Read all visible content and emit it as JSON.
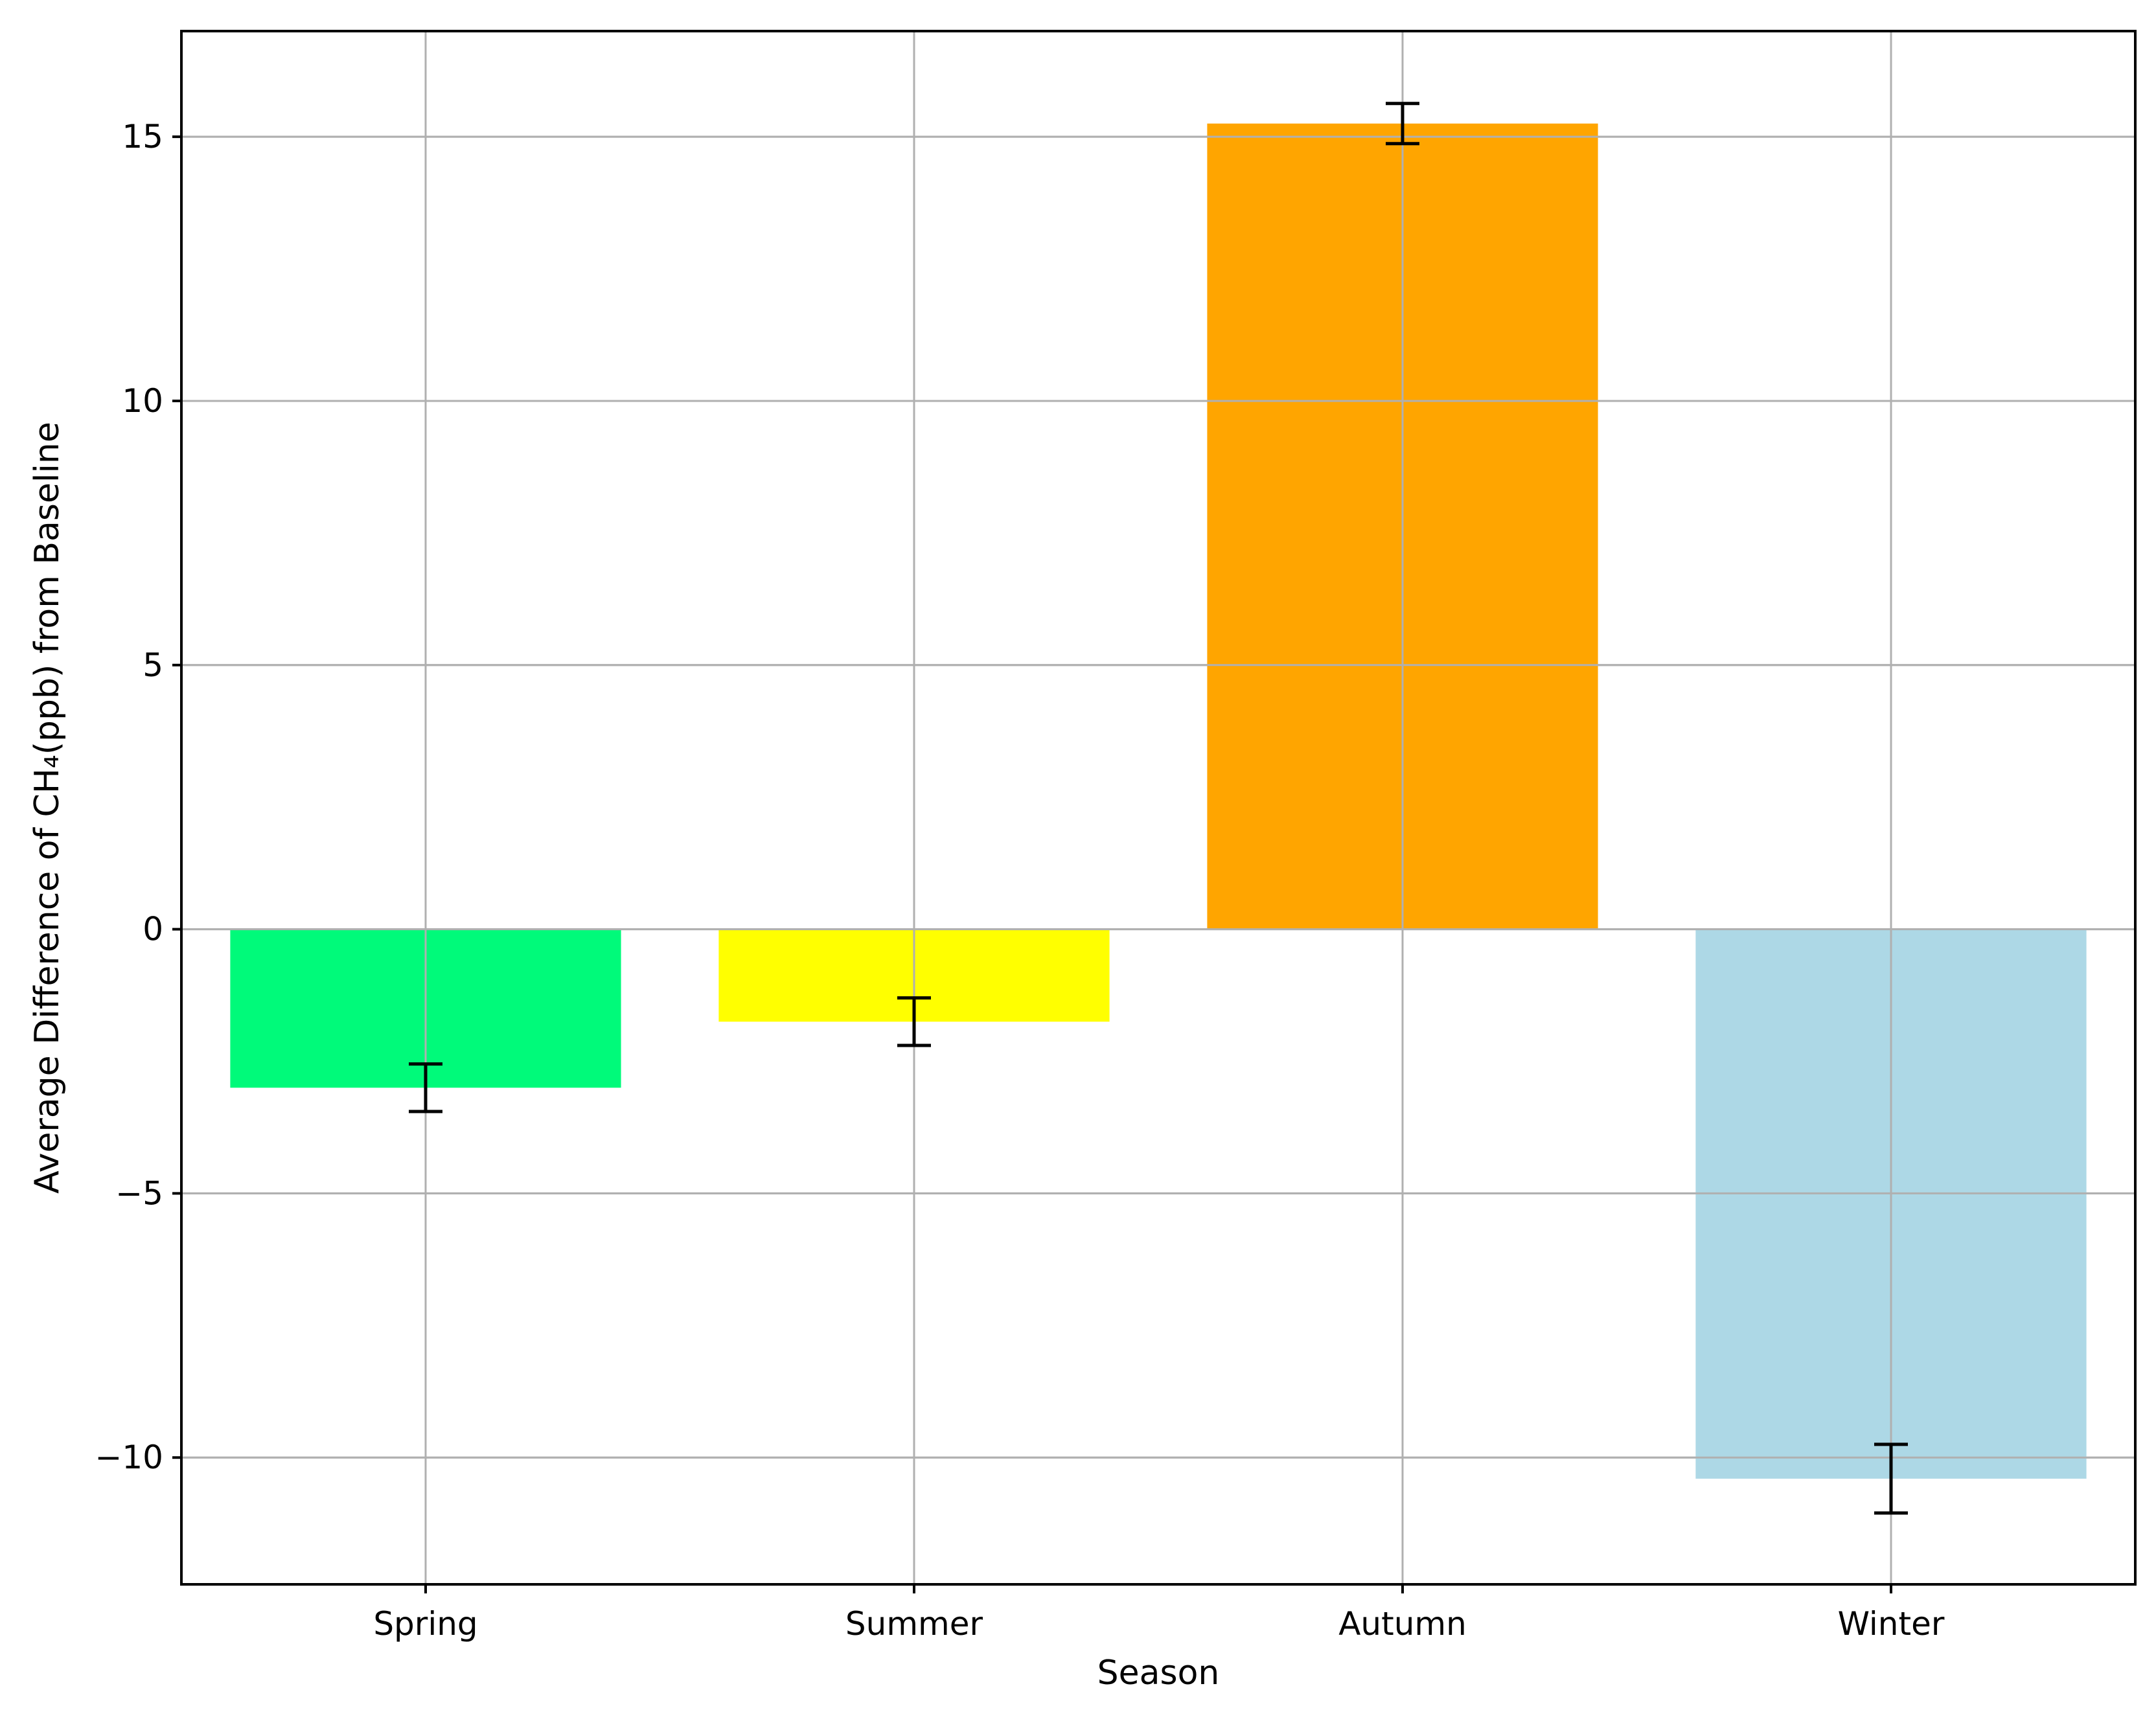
{
  "chart_data": {
    "type": "bar",
    "categories": [
      "Spring",
      "Summer",
      "Autumn",
      "Winter"
    ],
    "values": [
      -3.0,
      -1.75,
      15.25,
      -10.4
    ],
    "errors": [
      0.45,
      0.45,
      0.38,
      0.65
    ],
    "colors": [
      "#00FA7A",
      "#FFFF00",
      "#FFA500",
      "#ADD8E6"
    ],
    "title": "",
    "xlabel": "Season",
    "ylabel": "Average Difference of CH₄(ppb) from Baseline",
    "ylim": [
      -12.4,
      17.0
    ],
    "yticks": [
      -10,
      -5,
      0,
      5,
      10,
      15
    ],
    "ytick_labels": [
      "−10",
      "−5",
      "0",
      "5",
      "10",
      "15"
    ],
    "grid": true
  }
}
